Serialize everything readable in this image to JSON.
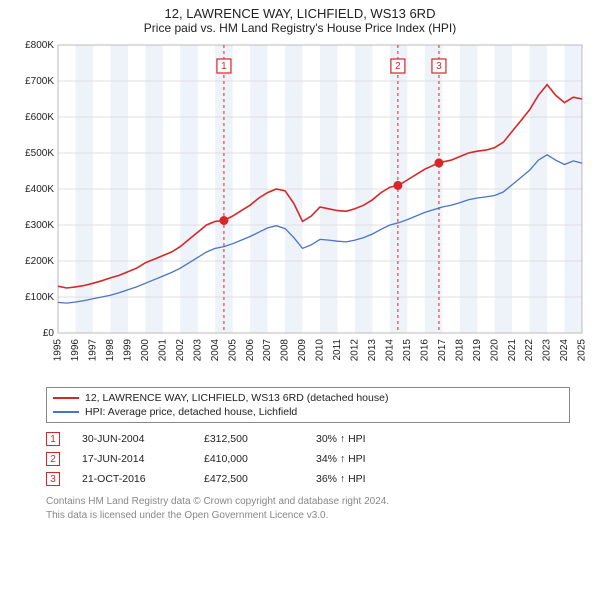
{
  "header": {
    "title": "12, LAWRENCE WAY, LICHFIELD, WS13 6RD",
    "subtitle": "Price paid vs. HM Land Registry's House Price Index (HPI)"
  },
  "chart": {
    "type": "line",
    "background": "#ffffff",
    "band_color": "#eef2f9",
    "plot_border": "#bbbbbb",
    "y": {
      "min": 0,
      "max": 800000,
      "step": 100000,
      "labels": [
        "£0",
        "£100K",
        "£200K",
        "£300K",
        "£400K",
        "£500K",
        "£600K",
        "£700K",
        "£800K"
      ]
    },
    "x": {
      "min": 1995,
      "max": 2025,
      "step": 1,
      "labels": [
        "1995",
        "1996",
        "1997",
        "1998",
        "1999",
        "2000",
        "2001",
        "2002",
        "2003",
        "2004",
        "2005",
        "2006",
        "2007",
        "2008",
        "2009",
        "2010",
        "2011",
        "2012",
        "2013",
        "2014",
        "2015",
        "2016",
        "2017",
        "2018",
        "2019",
        "2020",
        "2021",
        "2022",
        "2023",
        "2024",
        "2025"
      ]
    },
    "series": [
      {
        "name": "12, LAWRENCE WAY, LICHFIELD, WS13 6RD (detached house)",
        "color": "#d62728",
        "width": 1.6,
        "points": [
          [
            1995.0,
            130000
          ],
          [
            1995.5,
            125000
          ],
          [
            1996.0,
            128000
          ],
          [
            1996.5,
            132000
          ],
          [
            1997.0,
            138000
          ],
          [
            1997.5,
            145000
          ],
          [
            1998.0,
            153000
          ],
          [
            1998.5,
            160000
          ],
          [
            1999.0,
            170000
          ],
          [
            1999.5,
            180000
          ],
          [
            2000.0,
            195000
          ],
          [
            2000.5,
            205000
          ],
          [
            2001.0,
            215000
          ],
          [
            2001.5,
            225000
          ],
          [
            2002.0,
            240000
          ],
          [
            2002.5,
            260000
          ],
          [
            2003.0,
            280000
          ],
          [
            2003.5,
            300000
          ],
          [
            2004.0,
            310000
          ],
          [
            2004.5,
            312500
          ],
          [
            2005.0,
            325000
          ],
          [
            2005.5,
            340000
          ],
          [
            2006.0,
            355000
          ],
          [
            2006.5,
            375000
          ],
          [
            2007.0,
            390000
          ],
          [
            2007.5,
            400000
          ],
          [
            2008.0,
            395000
          ],
          [
            2008.5,
            360000
          ],
          [
            2009.0,
            310000
          ],
          [
            2009.5,
            325000
          ],
          [
            2010.0,
            350000
          ],
          [
            2010.5,
            345000
          ],
          [
            2011.0,
            340000
          ],
          [
            2011.5,
            338000
          ],
          [
            2012.0,
            345000
          ],
          [
            2012.5,
            355000
          ],
          [
            2013.0,
            370000
          ],
          [
            2013.5,
            390000
          ],
          [
            2014.0,
            405000
          ],
          [
            2014.5,
            410000
          ],
          [
            2015.0,
            425000
          ],
          [
            2015.5,
            440000
          ],
          [
            2016.0,
            455000
          ],
          [
            2016.8,
            472500
          ],
          [
            2017.0,
            475000
          ],
          [
            2017.5,
            480000
          ],
          [
            2018.0,
            490000
          ],
          [
            2018.5,
            500000
          ],
          [
            2019.0,
            505000
          ],
          [
            2019.5,
            508000
          ],
          [
            2020.0,
            515000
          ],
          [
            2020.5,
            530000
          ],
          [
            2021.0,
            560000
          ],
          [
            2021.5,
            590000
          ],
          [
            2022.0,
            620000
          ],
          [
            2022.5,
            660000
          ],
          [
            2023.0,
            690000
          ],
          [
            2023.5,
            660000
          ],
          [
            2024.0,
            640000
          ],
          [
            2024.5,
            655000
          ],
          [
            2025.0,
            650000
          ]
        ]
      },
      {
        "name": "HPI: Average price, detached house, Lichfield",
        "color": "#4a74c9",
        "width": 1.3,
        "points": [
          [
            1995.0,
            85000
          ],
          [
            1995.5,
            83000
          ],
          [
            1996.0,
            86000
          ],
          [
            1996.5,
            90000
          ],
          [
            1997.0,
            95000
          ],
          [
            1997.5,
            100000
          ],
          [
            1998.0,
            105000
          ],
          [
            1998.5,
            112000
          ],
          [
            1999.0,
            120000
          ],
          [
            1999.5,
            128000
          ],
          [
            2000.0,
            138000
          ],
          [
            2000.5,
            148000
          ],
          [
            2001.0,
            158000
          ],
          [
            2001.5,
            168000
          ],
          [
            2002.0,
            180000
          ],
          [
            2002.5,
            195000
          ],
          [
            2003.0,
            210000
          ],
          [
            2003.5,
            225000
          ],
          [
            2004.0,
            235000
          ],
          [
            2004.5,
            240000
          ],
          [
            2005.0,
            248000
          ],
          [
            2005.5,
            258000
          ],
          [
            2006.0,
            268000
          ],
          [
            2006.5,
            280000
          ],
          [
            2007.0,
            292000
          ],
          [
            2007.5,
            298000
          ],
          [
            2008.0,
            290000
          ],
          [
            2008.5,
            265000
          ],
          [
            2009.0,
            235000
          ],
          [
            2009.5,
            245000
          ],
          [
            2010.0,
            260000
          ],
          [
            2010.5,
            258000
          ],
          [
            2011.0,
            255000
          ],
          [
            2011.5,
            253000
          ],
          [
            2012.0,
            258000
          ],
          [
            2012.5,
            265000
          ],
          [
            2013.0,
            275000
          ],
          [
            2013.5,
            288000
          ],
          [
            2014.0,
            300000
          ],
          [
            2014.5,
            306000
          ],
          [
            2015.0,
            315000
          ],
          [
            2015.5,
            325000
          ],
          [
            2016.0,
            335000
          ],
          [
            2016.8,
            347000
          ],
          [
            2017.0,
            350000
          ],
          [
            2017.5,
            355000
          ],
          [
            2018.0,
            362000
          ],
          [
            2018.5,
            370000
          ],
          [
            2019.0,
            375000
          ],
          [
            2019.5,
            378000
          ],
          [
            2020.0,
            382000
          ],
          [
            2020.5,
            392000
          ],
          [
            2021.0,
            412000
          ],
          [
            2021.5,
            432000
          ],
          [
            2022.0,
            452000
          ],
          [
            2022.5,
            480000
          ],
          [
            2023.0,
            495000
          ],
          [
            2023.5,
            480000
          ],
          [
            2024.0,
            468000
          ],
          [
            2024.5,
            478000
          ],
          [
            2025.0,
            472000
          ]
        ]
      }
    ],
    "events": [
      {
        "n": "1",
        "year": 2004.5,
        "value": 312500
      },
      {
        "n": "2",
        "year": 2014.46,
        "value": 410000
      },
      {
        "n": "3",
        "year": 2016.81,
        "value": 472500
      }
    ],
    "event_line_color": "#d62728",
    "event_dot_color": "#d62728",
    "event_line_dash": "3,3"
  },
  "legend": {
    "items": [
      {
        "color": "#d62728",
        "label": "12, LAWRENCE WAY, LICHFIELD, WS13 6RD (detached house)"
      },
      {
        "color": "#4a74c9",
        "label": "HPI: Average price, detached house, Lichfield"
      }
    ]
  },
  "events_table": [
    {
      "n": "1",
      "date": "30-JUN-2004",
      "price": "£312,500",
      "pct": "30% ↑ HPI"
    },
    {
      "n": "2",
      "date": "17-JUN-2014",
      "price": "£410,000",
      "pct": "34% ↑ HPI"
    },
    {
      "n": "3",
      "date": "21-OCT-2016",
      "price": "£472,500",
      "pct": "36% ↑ HPI"
    }
  ],
  "attribution": {
    "line1": "Contains HM Land Registry data © Crown copyright and database right 2024.",
    "line2": "This data is licensed under the Open Government Licence v3.0."
  }
}
